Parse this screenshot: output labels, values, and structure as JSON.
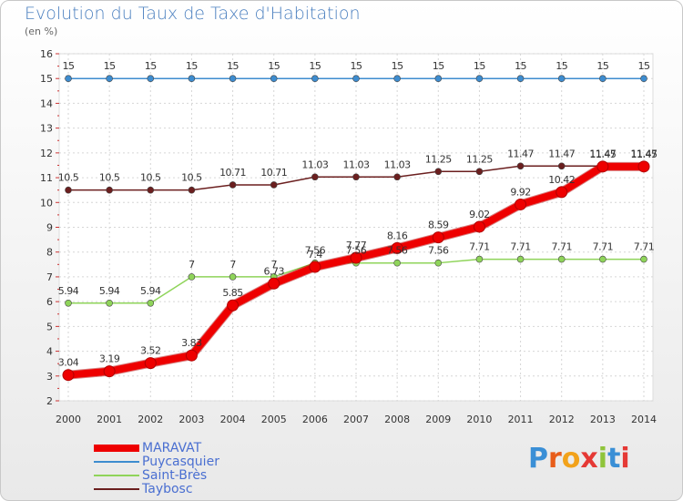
{
  "title": "Evolution du Taux de Taxe d'Habitation",
  "subtitle": "(en %)",
  "chart_data": {
    "type": "line",
    "x": [
      "2000",
      "2001",
      "2002",
      "2003",
      "2004",
      "2005",
      "2006",
      "2007",
      "2008",
      "2009",
      "2010",
      "2011",
      "2012",
      "2013",
      "2014"
    ],
    "ylim": [
      2,
      16
    ],
    "yticks": [
      2,
      3,
      4,
      5,
      6,
      7,
      8,
      9,
      10,
      11,
      12,
      13,
      14,
      15,
      16
    ],
    "grid": true,
    "legend_position": "bottom-left",
    "series": [
      {
        "name": "Puycasquier",
        "color": "#3d8ccf",
        "width": 1.5,
        "values": [
          15,
          15,
          15,
          15,
          15,
          15,
          15,
          15,
          15,
          15,
          15,
          15,
          15,
          15,
          15
        ],
        "labels": [
          "15",
          "15",
          "15",
          "15",
          "15",
          "15",
          "15",
          "15",
          "15",
          "15",
          "15",
          "15",
          "15",
          "15",
          "15"
        ]
      },
      {
        "name": "Saint-Brès",
        "color": "#8fd45a",
        "width": 1.5,
        "values": [
          5.94,
          5.94,
          5.94,
          7,
          7,
          7,
          7.56,
          7.56,
          7.56,
          7.56,
          7.71,
          7.71,
          7.71,
          7.71,
          7.71
        ],
        "labels": [
          "5.94",
          "5.94",
          "5.94",
          "7",
          "7",
          "7",
          "7.56",
          "7.56",
          "7.56",
          "7.56",
          "7.71",
          "7.71",
          "7.71",
          "7.71",
          "7.71"
        ]
      },
      {
        "name": "Taybosc",
        "color": "#6b1f1f",
        "width": 1.5,
        "values": [
          10.5,
          10.5,
          10.5,
          10.5,
          10.71,
          10.71,
          11.03,
          11.03,
          11.03,
          11.25,
          11.25,
          11.47,
          11.47,
          11.47,
          11.47
        ],
        "labels": [
          "10.5",
          "10.5",
          "10.5",
          "10.5",
          "10.71",
          "10.71",
          "11.03",
          "11.03",
          "11.03",
          "11.25",
          "11.25",
          "11.47",
          "11.47",
          "11.47",
          "11.47"
        ]
      },
      {
        "name": "MARAVAT",
        "color": "#ee0000",
        "width": 8,
        "values": [
          3.04,
          3.19,
          3.52,
          3.83,
          5.85,
          6.73,
          7.4,
          7.77,
          8.16,
          8.59,
          9.02,
          9.92,
          10.42,
          11.45,
          11.45
        ],
        "labels": [
          "3.04",
          "3.19",
          "3.52",
          "3.83",
          "5.85",
          "6.73",
          "7.4",
          "7.77",
          "8.16",
          "8.59",
          "9.02",
          "9.92",
          "10.42",
          "11.45",
          "11.45"
        ]
      }
    ]
  },
  "legend": [
    {
      "label": "MARAVAT",
      "color": "#ee0000",
      "thickness": 8
    },
    {
      "label": "Puycasquier",
      "color": "#3d8ccf",
      "thickness": 2
    },
    {
      "label": "Saint-Brès",
      "color": "#8fd45a",
      "thickness": 2
    },
    {
      "label": "Taybosc",
      "color": "#6b1f1f",
      "thickness": 2
    }
  ],
  "logo": {
    "text": "Proxiti",
    "letter_colors": [
      "#3a8fd6",
      "#e85d1a",
      "#f2a21b",
      "#e53935",
      "#8fc43a",
      "#3a8fd6",
      "#e53935"
    ]
  }
}
